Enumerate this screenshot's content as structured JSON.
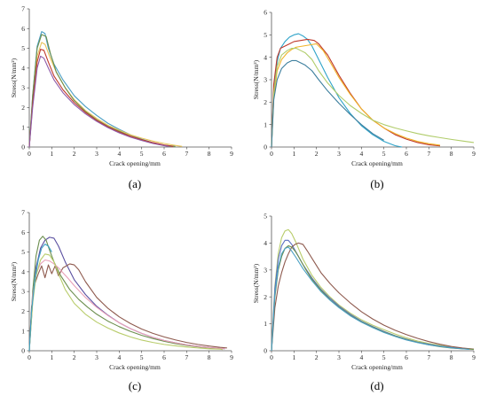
{
  "chart_data": [
    {
      "panel_label": "(a)",
      "type": "line",
      "xlabel": "Crack opening/mm",
      "ylabel": "Stress(N/mm²)",
      "xlim": [
        0,
        9
      ],
      "ylim": [
        0,
        7
      ],
      "xticks": [
        0,
        1,
        2,
        3,
        4,
        5,
        6,
        7,
        8,
        9
      ],
      "yticks": [
        0,
        1,
        2,
        3,
        4,
        5,
        6,
        7
      ],
      "grid": false,
      "series": [
        {
          "color": "#4a9ec4",
          "x": [
            0,
            0.15,
            0.35,
            0.55,
            0.7,
            0.85,
            1.1,
            1.5,
            2,
            2.5,
            3,
            3.5,
            4,
            4.5,
            5,
            5.5,
            6,
            6.3
          ],
          "y": [
            0,
            2.6,
            5.1,
            5.85,
            5.75,
            5.0,
            4.2,
            3.4,
            2.6,
            2.05,
            1.6,
            1.2,
            0.9,
            0.62,
            0.4,
            0.22,
            0.09,
            0.03
          ]
        },
        {
          "color": "#e8c45a",
          "x": [
            0,
            0.15,
            0.35,
            0.55,
            0.7,
            0.9,
            1.2,
            1.6,
            2,
            2.5,
            3,
            3.5,
            4,
            4.5,
            5,
            5.5,
            6,
            6.5,
            6.8
          ],
          "y": [
            0,
            2.3,
            4.6,
            5.3,
            5.2,
            4.6,
            3.8,
            3.0,
            2.4,
            1.85,
            1.45,
            1.1,
            0.85,
            0.62,
            0.45,
            0.3,
            0.18,
            0.08,
            0.03
          ]
        },
        {
          "color": "#6b8e4e",
          "x": [
            0,
            0.15,
            0.35,
            0.55,
            0.75,
            0.95,
            1.2,
            1.6,
            2,
            2.5,
            3,
            3.5,
            4,
            4.5,
            5,
            5.5,
            6,
            6.5
          ],
          "y": [
            0,
            2.6,
            5.0,
            5.7,
            5.6,
            4.7,
            3.8,
            3.0,
            2.35,
            1.8,
            1.38,
            1.05,
            0.8,
            0.56,
            0.38,
            0.22,
            0.1,
            0.03
          ]
        },
        {
          "color": "#c0392b",
          "x": [
            0,
            0.15,
            0.35,
            0.5,
            0.65,
            0.85,
            1.1,
            1.5,
            2,
            2.5,
            3,
            3.5,
            4,
            4.5,
            5,
            5.5,
            6,
            6.4
          ],
          "y": [
            0,
            2.2,
            4.3,
            4.95,
            4.9,
            4.3,
            3.6,
            2.9,
            2.25,
            1.75,
            1.35,
            1.02,
            0.76,
            0.55,
            0.37,
            0.22,
            0.1,
            0.03
          ]
        },
        {
          "color": "#8e5aa8",
          "x": [
            0,
            0.15,
            0.35,
            0.5,
            0.65,
            0.85,
            1.1,
            1.5,
            2,
            2.5,
            3,
            3.5,
            4,
            4.5,
            5,
            5.5,
            6,
            6.2
          ],
          "y": [
            0,
            2.0,
            4.0,
            4.6,
            4.5,
            4.0,
            3.4,
            2.75,
            2.15,
            1.68,
            1.3,
            0.98,
            0.72,
            0.5,
            0.33,
            0.18,
            0.07,
            0.03
          ]
        }
      ]
    },
    {
      "panel_label": "(b)",
      "type": "line",
      "xlabel": "Crack opening/mm",
      "ylabel": "Stress(N/mm²)",
      "xlim": [
        0,
        9
      ],
      "ylim": [
        0,
        6
      ],
      "xticks": [
        0,
        1,
        2,
        3,
        4,
        5,
        6,
        7,
        8,
        9
      ],
      "yticks": [
        0,
        1,
        2,
        3,
        4,
        5,
        6
      ],
      "grid": false,
      "series": [
        {
          "color": "#2ea3c9",
          "x": [
            0,
            0.1,
            0.25,
            0.4,
            0.6,
            0.8,
            1.0,
            1.2,
            1.4,
            1.6,
            1.8,
            2,
            2.5,
            3,
            3.5,
            4,
            4.5,
            5,
            5.5,
            5.8
          ],
          "y": [
            0,
            2.5,
            3.8,
            4.4,
            4.7,
            4.9,
            5.0,
            5.05,
            4.95,
            4.8,
            4.5,
            4.1,
            3.1,
            2.2,
            1.5,
            0.95,
            0.55,
            0.25,
            0.06,
            0
          ]
        },
        {
          "color": "#c0392b",
          "x": [
            0,
            0.1,
            0.25,
            0.4,
            0.6,
            0.8,
            1.0,
            1.3,
            1.6,
            1.9,
            2.1,
            2.5,
            3,
            3.5,
            4,
            4.5,
            5,
            5.5,
            6,
            6.5,
            7,
            7.5
          ],
          "y": [
            0,
            2.8,
            4.0,
            4.4,
            4.5,
            4.6,
            4.7,
            4.75,
            4.8,
            4.75,
            4.6,
            4.1,
            3.2,
            2.4,
            1.7,
            1.2,
            0.85,
            0.55,
            0.35,
            0.2,
            0.1,
            0.05
          ]
        },
        {
          "color": "#f0b429",
          "x": [
            0,
            0.1,
            0.25,
            0.45,
            0.7,
            0.9,
            1.1,
            1.4,
            1.7,
            2.0,
            2.3,
            2.6,
            3,
            3.5,
            4,
            4.5,
            5,
            5.5,
            6,
            6.5,
            7,
            7.5
          ],
          "y": [
            0,
            2.2,
            3.4,
            3.9,
            4.2,
            4.35,
            4.45,
            4.5,
            4.55,
            4.6,
            4.3,
            3.8,
            3.1,
            2.35,
            1.7,
            1.2,
            0.85,
            0.6,
            0.4,
            0.25,
            0.15,
            0.08
          ]
        },
        {
          "color": "#b0cc6a",
          "x": [
            0,
            0.1,
            0.25,
            0.45,
            0.7,
            0.9,
            1.1,
            1.3,
            1.5,
            1.8,
            2.1,
            2.5,
            3,
            3.5,
            4,
            4.5,
            5,
            5.5,
            6,
            6.5,
            7,
            7.5,
            8,
            8.5,
            9
          ],
          "y": [
            0,
            2.4,
            3.6,
            4.1,
            4.3,
            4.4,
            4.4,
            4.3,
            4.2,
            3.9,
            3.4,
            2.85,
            2.3,
            1.85,
            1.5,
            1.2,
            1.0,
            0.85,
            0.72,
            0.6,
            0.5,
            0.42,
            0.34,
            0.27,
            0.2
          ]
        },
        {
          "color": "#3d7f9e",
          "x": [
            0,
            0.1,
            0.25,
            0.45,
            0.7,
            0.9,
            1.1,
            1.3,
            1.5,
            1.8,
            2.1,
            2.5,
            3,
            3.5,
            4,
            4.5,
            5
          ],
          "y": [
            0,
            2.1,
            3.0,
            3.5,
            3.75,
            3.85,
            3.85,
            3.75,
            3.65,
            3.4,
            3.0,
            2.5,
            1.95,
            1.45,
            1.0,
            0.6,
            0.3
          ]
        }
      ]
    },
    {
      "panel_label": "(c)",
      "type": "line",
      "xlabel": "Crack opening/mm",
      "ylabel": "Stress(N/mm²)",
      "xlim": [
        0,
        9
      ],
      "ylim": [
        0,
        7
      ],
      "xticks": [
        0,
        1,
        2,
        3,
        4,
        5,
        6,
        7,
        8,
        9
      ],
      "yticks": [
        0,
        1,
        2,
        3,
        4,
        5,
        6,
        7
      ],
      "grid": false,
      "series": [
        {
          "color": "#5a4fa0",
          "x": [
            0,
            0.15,
            0.3,
            0.5,
            0.7,
            0.9,
            1.1,
            1.3,
            1.6,
            2,
            2.5,
            3,
            3.5,
            4,
            4.5,
            5,
            5.5,
            6,
            6.5,
            7,
            7.5,
            8,
            8.5,
            8.7
          ],
          "y": [
            0,
            2.5,
            4.2,
            5.2,
            5.6,
            5.75,
            5.7,
            5.3,
            4.5,
            3.6,
            2.85,
            2.25,
            1.8,
            1.42,
            1.12,
            0.88,
            0.68,
            0.52,
            0.4,
            0.3,
            0.22,
            0.16,
            0.12,
            0.1
          ]
        },
        {
          "color": "#6b8e4e",
          "x": [
            0,
            0.15,
            0.3,
            0.45,
            0.6,
            0.75,
            0.9,
            1.1,
            1.4,
            1.8,
            2.2,
            2.6,
            3,
            3.5,
            4,
            4.5,
            5,
            5.5,
            6,
            6.5,
            7,
            7.5,
            8,
            8.5
          ],
          "y": [
            0,
            3.0,
            4.8,
            5.6,
            5.8,
            5.6,
            5.1,
            4.5,
            3.8,
            3.1,
            2.6,
            2.2,
            1.85,
            1.5,
            1.22,
            0.98,
            0.78,
            0.62,
            0.48,
            0.36,
            0.27,
            0.2,
            0.14,
            0.1
          ]
        },
        {
          "color": "#8e5a4e",
          "x": [
            0,
            0.1,
            0.25,
            0.4,
            0.55,
            0.7,
            0.85,
            1.0,
            1.15,
            1.3,
            1.5,
            1.8,
            2.0,
            2.2,
            2.5,
            3,
            3.5,
            4,
            4.5,
            5,
            5.5,
            6,
            6.5,
            7,
            7.5,
            8,
            8.5,
            8.8
          ],
          "y": [
            0,
            2.2,
            3.4,
            3.9,
            4.3,
            3.7,
            4.35,
            3.9,
            4.3,
            3.8,
            4.2,
            4.4,
            4.35,
            4.1,
            3.5,
            2.7,
            2.15,
            1.72,
            1.38,
            1.1,
            0.88,
            0.7,
            0.55,
            0.42,
            0.32,
            0.24,
            0.17,
            0.14
          ]
        },
        {
          "color": "#e8a0b8",
          "x": [
            0,
            0.15,
            0.3,
            0.5,
            0.7,
            0.9,
            1.1,
            1.3,
            1.5,
            1.7,
            2,
            2.5,
            3,
            3.5,
            4,
            4.5,
            5,
            5.5,
            6,
            6.5,
            7,
            7.5,
            8,
            8.5,
            8.7
          ],
          "y": [
            0,
            2.8,
            3.9,
            4.4,
            4.6,
            4.55,
            4.4,
            4.2,
            3.95,
            3.7,
            3.3,
            2.7,
            2.2,
            1.78,
            1.42,
            1.12,
            0.88,
            0.68,
            0.52,
            0.4,
            0.3,
            0.22,
            0.16,
            0.12,
            0.1
          ]
        },
        {
          "color": "#b8cc6a",
          "x": [
            0,
            0.15,
            0.3,
            0.5,
            0.7,
            0.9,
            1.1,
            1.3,
            1.6,
            2,
            2.5,
            3,
            3.5,
            4,
            4.5,
            5,
            5.5,
            6,
            6.5,
            7,
            7.5,
            8,
            8.5,
            8.6
          ],
          "y": [
            0,
            2.4,
            3.8,
            4.6,
            4.9,
            4.85,
            4.5,
            3.9,
            3.1,
            2.4,
            1.85,
            1.45,
            1.15,
            0.9,
            0.7,
            0.54,
            0.42,
            0.32,
            0.25,
            0.19,
            0.14,
            0.1,
            0.08,
            0.06
          ]
        },
        {
          "color": "#3a9ec4",
          "x": [
            0,
            0.1,
            0.25,
            0.4,
            0.55,
            0.7,
            0.85,
            1.0
          ],
          "y": [
            0,
            2.0,
            3.6,
            4.6,
            5.2,
            5.4,
            5.3,
            5.0
          ]
        }
      ]
    },
    {
      "panel_label": "(d)",
      "type": "line",
      "xlabel": "Crack opening/mm",
      "ylabel": "Stress(N/mm²)",
      "xlim": [
        0,
        9
      ],
      "ylim": [
        0,
        5
      ],
      "xticks": [
        0,
        1,
        2,
        3,
        4,
        5,
        6,
        7,
        8,
        9
      ],
      "yticks": [
        0,
        1,
        2,
        3,
        4,
        5
      ],
      "grid": false,
      "series": [
        {
          "color": "#b8cc6a",
          "x": [
            0,
            0.15,
            0.3,
            0.45,
            0.6,
            0.75,
            0.9,
            1.1,
            1.4,
            1.8,
            2.2,
            2.6,
            3,
            3.5,
            4,
            4.5,
            5,
            5.5,
            6,
            6.5,
            7,
            7.5,
            8,
            8.5,
            9
          ],
          "y": [
            0,
            2.4,
            3.6,
            4.2,
            4.45,
            4.5,
            4.35,
            4.0,
            3.4,
            2.8,
            2.35,
            2.0,
            1.7,
            1.4,
            1.15,
            0.95,
            0.78,
            0.62,
            0.48,
            0.36,
            0.27,
            0.2,
            0.14,
            0.09,
            0.06
          ]
        },
        {
          "color": "#5a6fc0",
          "x": [
            0,
            0.15,
            0.3,
            0.45,
            0.6,
            0.75,
            0.9,
            1.1,
            1.4,
            1.8,
            2.2,
            2.6,
            3,
            3.5,
            4,
            4.5,
            5,
            5.5,
            6,
            6.5,
            7,
            7.5,
            8,
            8.5,
            8.8
          ],
          "y": [
            0,
            2.3,
            3.4,
            3.9,
            4.1,
            4.1,
            3.95,
            3.65,
            3.2,
            2.7,
            2.28,
            1.95,
            1.66,
            1.36,
            1.1,
            0.9,
            0.72,
            0.56,
            0.43,
            0.32,
            0.24,
            0.17,
            0.12,
            0.08,
            0.06
          ]
        },
        {
          "color": "#8e5a4e",
          "x": [
            0,
            0.15,
            0.3,
            0.45,
            0.6,
            0.75,
            0.9,
            1.05,
            1.2,
            1.4,
            1.6,
            1.9,
            2.2,
            2.6,
            3,
            3.5,
            4,
            4.5,
            5,
            5.5,
            6,
            6.5,
            7,
            7.5,
            8,
            8.5,
            9
          ],
          "y": [
            0,
            1.6,
            2.4,
            2.9,
            3.3,
            3.6,
            3.85,
            3.95,
            4.0,
            3.95,
            3.7,
            3.3,
            2.9,
            2.5,
            2.15,
            1.78,
            1.45,
            1.18,
            0.95,
            0.76,
            0.6,
            0.46,
            0.34,
            0.24,
            0.16,
            0.1,
            0.06
          ]
        },
        {
          "color": "#6b8e4e",
          "x": [
            0,
            0.15,
            0.3,
            0.45,
            0.6,
            0.75,
            0.9,
            1.05,
            1.2,
            1.5,
            1.8,
            2.2,
            2.6,
            3,
            3.5,
            4,
            4.5,
            5,
            5.5,
            6,
            6.5,
            7,
            7.5,
            8,
            8.5,
            9
          ],
          "y": [
            0,
            2.0,
            3.0,
            3.5,
            3.8,
            3.9,
            3.85,
            3.7,
            3.5,
            3.05,
            2.65,
            2.25,
            1.9,
            1.62,
            1.32,
            1.08,
            0.88,
            0.7,
            0.55,
            0.42,
            0.31,
            0.22,
            0.15,
            0.1,
            0.07,
            0.05
          ]
        },
        {
          "color": "#4aa0c4",
          "x": [
            0,
            0.15,
            0.3,
            0.45,
            0.6,
            0.75,
            0.9,
            1.1,
            1.4,
            1.8,
            2.2,
            2.6,
            3,
            3.5,
            4,
            4.5,
            5,
            5.5,
            6,
            6.5,
            7,
            7.5,
            8,
            8.5,
            8.8
          ],
          "y": [
            0,
            2.1,
            3.1,
            3.6,
            3.8,
            3.85,
            3.7,
            3.45,
            3.05,
            2.6,
            2.2,
            1.88,
            1.6,
            1.3,
            1.06,
            0.86,
            0.68,
            0.53,
            0.4,
            0.3,
            0.22,
            0.16,
            0.11,
            0.07,
            0.05
          ]
        }
      ]
    }
  ]
}
